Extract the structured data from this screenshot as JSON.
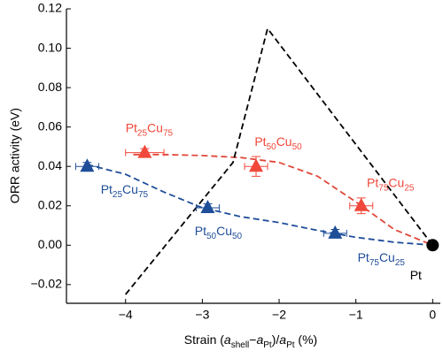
{
  "chart_data": {
    "type": "scatter",
    "x_label": [
      "Strain (",
      "a",
      "shell",
      "−",
      "a",
      "Pt",
      ")/",
      "a",
      "Pt",
      " (%)"
    ],
    "x_label_styles": [
      "normal",
      "italic",
      "sub",
      "normal",
      "italic",
      "sub",
      "normal",
      "italic",
      "sub",
      "normal"
    ],
    "y_label": "ORR activity (eV)",
    "xlim": [
      -4.77,
      0.1
    ],
    "ylim": [
      -0.0295,
      0.12
    ],
    "xticks": [
      {
        "value": -4,
        "label": "−4"
      },
      {
        "value": -3,
        "label": "−3"
      },
      {
        "value": -2,
        "label": "−2"
      },
      {
        "value": -1,
        "label": "−1"
      },
      0
    ],
    "yticks": [
      {
        "value": -0.02,
        "label": "−0.02"
      },
      {
        "value": 0,
        "label": "0.00"
      },
      0.02,
      0.04,
      0.06,
      0.08,
      {
        "value": 0.1,
        "label": "0.10"
      },
      0.12
    ],
    "series": [
      {
        "color": "#f0483a",
        "x": [
          -3.75,
          -2.3,
          -0.93
        ],
        "values": [
          0.047,
          0.04,
          0.02
        ],
        "xerr": [
          0.25,
          0.15,
          0.15
        ],
        "yerr": [
          0.002,
          0.005,
          0.004
        ],
        "labels": [
          "Pt25Cu75",
          "Pt50Cu50",
          "Pt75Cu25"
        ]
      },
      {
        "color": "#1f4e99",
        "x": [
          -4.5,
          -2.93,
          -1.27
        ],
        "values": [
          0.04,
          0.019,
          0.006
        ],
        "xerr": [
          0.15,
          0.15,
          0.15
        ],
        "yerr": [
          0.002,
          0.002,
          0.002
        ],
        "labels": [
          "Pt25Cu75",
          "Pt50Cu50",
          "Pt75Cu25"
        ]
      }
    ],
    "curves": [
      {
        "color": "#e0483a",
        "x": [
          -3.9,
          -3.5,
          -3,
          -2.5,
          -2,
          -1.5,
          -1,
          -0.5,
          0
        ],
        "values": [
          0.046,
          0.046,
          0.0455,
          0.0445,
          0.042,
          0.035,
          0.022,
          0.008,
          0
        ]
      },
      {
        "color": "#1f4e99",
        "x": [
          -4.5,
          -4,
          -3.5,
          -3,
          -2.5,
          -2,
          -1.5,
          -1,
          -0.5,
          0
        ],
        "values": [
          0.041,
          0.036,
          0.027,
          0.019,
          0.0145,
          0.0115,
          0.0075,
          0.004,
          0.0015,
          0
        ]
      },
      {
        "color": "#000000",
        "x": [
          -4,
          -2.6,
          -2.15,
          0
        ],
        "values": [
          -0.025,
          0.042,
          0.11,
          0
        ]
      }
    ],
    "reference": {
      "x": 0,
      "value": 0,
      "label": "Pt",
      "color": "#000000"
    }
  }
}
